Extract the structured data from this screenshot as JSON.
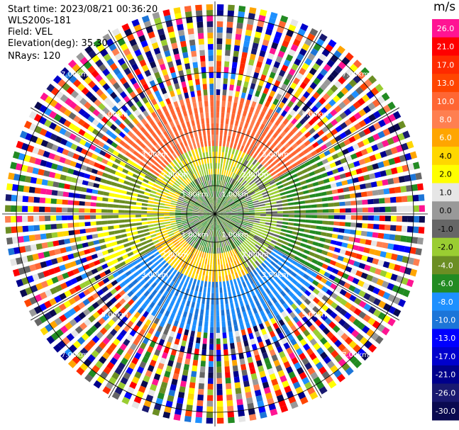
{
  "header": {
    "start_time": "Start time: 2023/08/21 00:36:20",
    "instrument": "WLS200s-181",
    "field": "Field: VEL",
    "elevation": "Elevation(deg): 35.30",
    "nrays": "NRays: 120"
  },
  "chart_data": {
    "type": "heatmap",
    "projection": "polar PPI (plan position indicator)",
    "field": "VEL",
    "units": "m/s",
    "nrays": 120,
    "elevation_deg": 35.3,
    "range_rings_km": [
      1.0,
      2.0,
      3.0,
      5.0,
      7.0
    ],
    "range_ring_labels": [
      "1.00km",
      "2.00km",
      "3.00km",
      "5.00km",
      "7.00km"
    ],
    "colorbar": {
      "ticks": [
        "26.0",
        "21.0",
        "17.0",
        "13.0",
        "10.0",
        "8.0",
        "6.0",
        "4.0",
        "2.0",
        "1.0",
        "0.0",
        "-1.0",
        "-2.0",
        "-4.0",
        "-6.0",
        "-8.0",
        "-10.0",
        "-13.0",
        "-17.0",
        "-21.0",
        "-26.0",
        "-30.0"
      ],
      "colors": [
        "#ff1493",
        "#ff0000",
        "#ff2a00",
        "#ff4500",
        "#ff6633",
        "#ff7f50",
        "#ffa500",
        "#ffd700",
        "#ffff00",
        "#e6e6e6",
        "#999999",
        "#666666",
        "#9acd32",
        "#6b8e23",
        "#228b22",
        "#1e90ff",
        "#1c75d8",
        "#0000ff",
        "#0000cd",
        "#00008b",
        "#191970",
        "#0a0a50"
      ]
    },
    "pattern_summary": {
      "center_colors": [
        "#228b22",
        "#6b8e23"
      ],
      "inner_ring_colors": [
        "#ffd700",
        "#9acd32"
      ],
      "north_sector_color": "#ff6633",
      "south_sector_color": "#1e90ff",
      "outer_zone": "noisy / random"
    }
  }
}
